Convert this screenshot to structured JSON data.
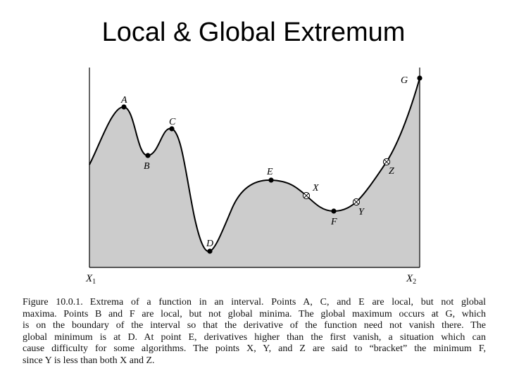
{
  "title": "Local & Global Extremum",
  "figure": {
    "points": {
      "A": "A",
      "B": "B",
      "C": "C",
      "D": "D",
      "E": "E",
      "F": "F",
      "G": "G",
      "X": "X",
      "Y": "Y",
      "Z": "Z"
    },
    "axis": {
      "x1": "X",
      "x1_sub": "1",
      "x2": "X",
      "x2_sub": "2"
    },
    "colors": {
      "fill": "#cccccc",
      "curve": "#000000",
      "frame": "#000000"
    }
  },
  "caption": {
    "label": "Figure 10.0.1.",
    "lines": [
      "Extrema of a function in an interval. Points A, C, and E are local, but not global",
      "maxima. Points B and F are local, but not global minima. The global maximum occurs at G, which",
      "is on the boundary of the interval so that the derivative of the function need not vanish there. The",
      "global minimum is at D. At point E, derivatives higher than the first vanish, a situation which can",
      "cause difficulty for some algorithms. The points X, Y, and Z are said to “bracket” the minimum F,",
      "since Y is less than both X and Z."
    ]
  }
}
